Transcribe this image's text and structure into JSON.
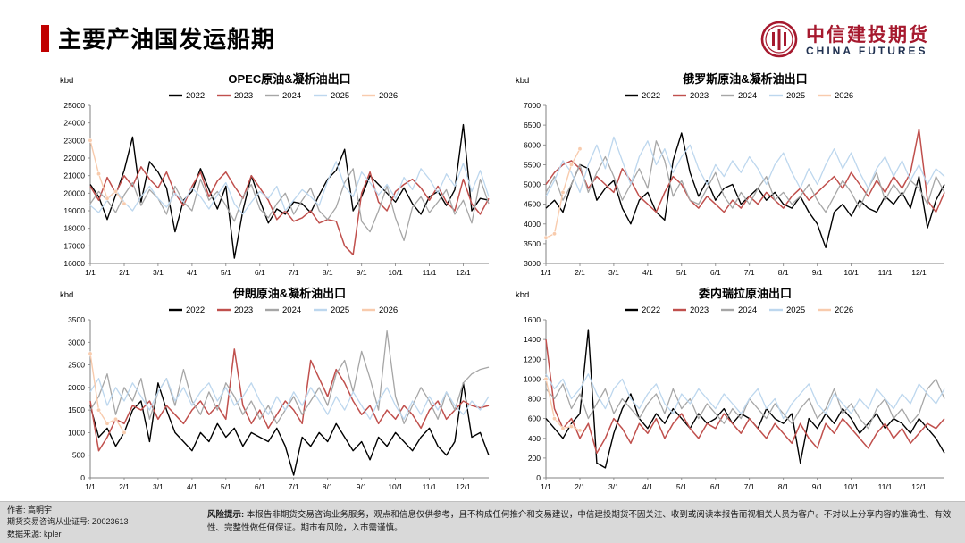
{
  "header": {
    "title": "主要产油国发运船期"
  },
  "logo": {
    "name_cn": "中信建投期货",
    "name_en": "CHINA FUTURES",
    "red": "#A6192E",
    "navy": "#1F3050"
  },
  "footer": {
    "author_line": "作者: 高明宇",
    "license_line": "期货交易咨询从业证号: Z0023613",
    "source_line": "数据来源: kpler",
    "risk_label": "风险提示:",
    "risk_text": "本报告非期货交易咨询业务服务，观点和信息仅供参考，且不构成任何推介和交易建议，中信建投期货不因关注、收到或阅读本报告而视相关人员为客户。不对以上分享内容的准确性、有效性、完整性做任何保证。期市有风险，入市需谨慎。"
  },
  "colors": {
    "accent_red": "#C00000"
  },
  "chart_data": [
    {
      "type": "line",
      "title": "OPEC原油&凝析油出口",
      "ylabel": "kbd",
      "ylim": [
        16000,
        25000
      ],
      "ytick_step": 1000,
      "x_labels": [
        "1/1",
        "2/1",
        "3/1",
        "4/1",
        "5/1",
        "6/1",
        "7/1",
        "8/1",
        "9/1",
        "10/1",
        "11/1",
        "12/1"
      ],
      "points_per_month": 4,
      "series": [
        {
          "name": "2022",
          "color": "#000000",
          "width": 1.4,
          "markers": false,
          "values": [
            20500,
            19800,
            18500,
            19900,
            21300,
            23200,
            19500,
            21800,
            21200,
            20300,
            17800,
            19600,
            20100,
            21400,
            20200,
            19100,
            20400,
            16300,
            19000,
            21000,
            19600,
            18300,
            19100,
            18800,
            19500,
            19400,
            18900,
            19900,
            20800,
            21300,
            22500,
            19000,
            19800,
            21000,
            20500,
            20000,
            19500,
            20300,
            19400,
            18800,
            19800,
            20100,
            19300,
            20200,
            23900,
            19000,
            19700,
            19600
          ]
        },
        {
          "name": "2023",
          "color": "#C0504D",
          "width": 1.5,
          "markers": false,
          "values": [
            20400,
            19600,
            20900,
            20000,
            21000,
            20400,
            21500,
            20800,
            20300,
            21200,
            20000,
            19300,
            20400,
            21200,
            19800,
            20700,
            21200,
            20400,
            19700,
            21000,
            20300,
            19600,
            18500,
            19000,
            18400,
            18600,
            19000,
            18300,
            18500,
            18400,
            17000,
            16500,
            20000,
            21200,
            19500,
            19000,
            20100,
            20500,
            20800,
            20300,
            19600,
            20400,
            19500,
            19000,
            20800,
            19400,
            18800,
            19700
          ]
        },
        {
          "name": "2024",
          "color": "#A6A6A6",
          "width": 1.3,
          "markers": false,
          "values": [
            19400,
            20100,
            19600,
            18900,
            19900,
            20600,
            19300,
            20200,
            19700,
            18800,
            20400,
            19500,
            19000,
            20800,
            19600,
            20100,
            19300,
            18400,
            19800,
            20500,
            19100,
            18600,
            19400,
            20000,
            18800,
            19600,
            20300,
            19000,
            18500,
            19200,
            20600,
            21400,
            18400,
            17800,
            19000,
            20400,
            18600,
            17300,
            19200,
            19800,
            18900,
            19500,
            20200,
            18800,
            19600,
            18300,
            20800,
            19400
          ]
        },
        {
          "name": "2025",
          "color": "#BDD7EE",
          "width": 1.3,
          "markers": false,
          "values": [
            19300,
            18900,
            19600,
            20200,
            19500,
            19000,
            19800,
            20400,
            19700,
            19200,
            20000,
            19500,
            20300,
            19800,
            19100,
            19900,
            20600,
            19400,
            18800,
            19500,
            20100,
            19700,
            20400,
            19000,
            19600,
            20200,
            19800,
            19300,
            20700,
            21800,
            20400,
            19800,
            21200,
            20600,
            19900,
            20500,
            19700,
            20900,
            20200,
            21400,
            20800,
            20000,
            21100,
            20400,
            21700,
            20100,
            21300,
            19800
          ]
        },
        {
          "name": "2026",
          "color": "#F8CBAD",
          "width": 1.4,
          "markers": true,
          "values": [
            23000,
            21100,
            19700,
            20100,
            19400
          ]
        }
      ]
    },
    {
      "type": "line",
      "title": "俄罗斯原油&凝析油出口",
      "ylabel": "kbd",
      "ylim": [
        3000,
        7000
      ],
      "ytick_step": 500,
      "x_labels": [
        "1/1",
        "2/1",
        "3/1",
        "4/1",
        "5/1",
        "6/1",
        "7/1",
        "8/1",
        "9/1",
        "10/1",
        "11/1",
        "12/1"
      ],
      "points_per_month": 4,
      "series": [
        {
          "name": "2022",
          "color": "#000000",
          "width": 1.4,
          "markers": false,
          "values": [
            4400,
            4600,
            4300,
            5000,
            5500,
            5400,
            4600,
            4900,
            5100,
            4400,
            4000,
            4600,
            4800,
            4300,
            4100,
            5600,
            6300,
            5300,
            4700,
            5100,
            4600,
            4900,
            5000,
            4500,
            4700,
            4900,
            4600,
            4800,
            4500,
            4400,
            4700,
            4300,
            4000,
            3400,
            4300,
            4500,
            4200,
            4600,
            4400,
            4300,
            4700,
            4500,
            4800,
            4400,
            5200,
            3900,
            4600,
            5000
          ]
        },
        {
          "name": "2023",
          "color": "#C0504D",
          "width": 1.5,
          "markers": false,
          "values": [
            5000,
            5300,
            5500,
            5600,
            5400,
            4900,
            5200,
            5000,
            4800,
            5400,
            5100,
            4700,
            4500,
            4300,
            4800,
            5200,
            5000,
            4600,
            4400,
            4700,
            4500,
            4300,
            4600,
            4400,
            4700,
            4500,
            4800,
            4600,
            4400,
            4700,
            4900,
            4600,
            4800,
            5000,
            5200,
            4900,
            5300,
            5000,
            4700,
            5100,
            4800,
            5200,
            4900,
            5300,
            6400,
            4600,
            4300,
            4800
          ]
        },
        {
          "name": "2024",
          "color": "#A6A6A6",
          "width": 1.3,
          "markers": false,
          "values": [
            4800,
            5200,
            4600,
            5000,
            5500,
            4800,
            5300,
            5700,
            5200,
            4600,
            5000,
            5400,
            4900,
            6100,
            5600,
            4700,
            5100,
            4600,
            4500,
            4900,
            5300,
            4700,
            4400,
            4800,
            4500,
            4900,
            5200,
            4600,
            4800,
            4500,
            4700,
            5000,
            4600,
            4300,
            4700,
            5100,
            4800,
            4400,
            4900,
            5300,
            4600,
            5000,
            4700,
            5100,
            4900,
            4500,
            5200,
            4800
          ]
        },
        {
          "name": "2025",
          "color": "#BDD7EE",
          "width": 1.3,
          "markers": false,
          "values": [
            4700,
            5100,
            5600,
            5300,
            4800,
            5500,
            6000,
            5400,
            6200,
            5600,
            5000,
            5700,
            6100,
            5500,
            5900,
            5300,
            5700,
            6000,
            5400,
            5000,
            5500,
            5200,
            5600,
            5300,
            5700,
            5400,
            5000,
            5500,
            5800,
            5300,
            4900,
            5400,
            5000,
            5500,
            5900,
            5400,
            5800,
            5300,
            4900,
            5400,
            5700,
            5200,
            5600,
            5100,
            5500,
            5000,
            5400,
            5200
          ]
        },
        {
          "name": "2026",
          "color": "#F8CBAD",
          "width": 1.4,
          "markers": true,
          "values": [
            3650,
            3750,
            4800,
            5500,
            5900
          ]
        }
      ]
    },
    {
      "type": "line",
      "title": "伊朗原油&凝析油出口",
      "ylabel": "kbd",
      "ylim": [
        0,
        3500
      ],
      "ytick_step": 500,
      "x_labels": [
        "1/1",
        "2/1",
        "3/1",
        "4/1",
        "5/1",
        "6/1",
        "7/1",
        "8/1",
        "9/1",
        "10/1",
        "11/1",
        "12/1"
      ],
      "points_per_month": 4,
      "series": [
        {
          "name": "2022",
          "color": "#000000",
          "width": 1.4,
          "markers": false,
          "values": [
            1600,
            900,
            1100,
            700,
            1000,
            1500,
            1700,
            800,
            2100,
            1500,
            1000,
            800,
            600,
            1000,
            800,
            1200,
            900,
            1100,
            700,
            1000,
            900,
            800,
            1100,
            700,
            60,
            900,
            700,
            1000,
            800,
            1200,
            900,
            600,
            800,
            400,
            900,
            700,
            1000,
            800,
            600,
            900,
            1100,
            700,
            500,
            800,
            2100,
            900,
            1000,
            500
          ]
        },
        {
          "name": "2023",
          "color": "#C0504D",
          "width": 1.5,
          "markers": false,
          "values": [
            1700,
            600,
            900,
            1300,
            1200,
            1600,
            1500,
            1700,
            1300,
            1600,
            1400,
            1200,
            1500,
            1700,
            1400,
            1600,
            1300,
            2850,
            1600,
            1200,
            1500,
            1100,
            1400,
            1700,
            1500,
            1200,
            2600,
            2200,
            1800,
            2400,
            2100,
            1700,
            1400,
            1600,
            1200,
            1500,
            1300,
            1600,
            1400,
            1100,
            1500,
            1700,
            1300,
            1500,
            1700,
            1600,
            1550,
            1600
          ]
        },
        {
          "name": "2024",
          "color": "#A6A6A6",
          "width": 1.3,
          "markers": false,
          "values": [
            1500,
            1800,
            2300,
            1400,
            2000,
            1700,
            2200,
            1300,
            1900,
            2200,
            1600,
            2400,
            1700,
            1400,
            1900,
            1500,
            2100,
            1800,
            1400,
            1700,
            1300,
            1600,
            1200,
            1500,
            1800,
            1400,
            1700,
            2000,
            1600,
            2300,
            2600,
            1900,
            2800,
            2200,
            1500,
            3250,
            1800,
            1200,
            1600,
            2000,
            1700,
            1300,
            1900,
            1500,
            2100,
            2300,
            2400,
            2450
          ]
        },
        {
          "name": "2025",
          "color": "#BDD7EE",
          "width": 1.3,
          "markers": false,
          "values": [
            1900,
            2200,
            1600,
            2000,
            1700,
            2100,
            1800,
            1500,
            1900,
            2200,
            1700,
            2000,
            1600,
            1900,
            2100,
            1700,
            2000,
            1600,
            1800,
            2100,
            1700,
            1400,
            1800,
            1500,
            1900,
            1600,
            2000,
            1700,
            1400,
            1800,
            1500,
            1900,
            1600,
            1300,
            1700,
            2000,
            1600,
            1300,
            1700,
            1400,
            1800,
            1500,
            1900,
            1600,
            1400,
            1700,
            1500,
            1800
          ]
        },
        {
          "name": "2026",
          "color": "#F8CBAD",
          "width": 1.4,
          "markers": true,
          "values": [
            2750,
            1500,
            1200,
            1300,
            1000
          ]
        }
      ]
    },
    {
      "type": "line",
      "title": "委内瑞拉原油出口",
      "ylabel": "kbd",
      "ylim": [
        0,
        1600
      ],
      "ytick_step": 200,
      "x_labels": [
        "1/1",
        "2/1",
        "3/1",
        "4/1",
        "5/1",
        "6/1",
        "7/1",
        "8/1",
        "9/1",
        "10/1",
        "11/1",
        "12/1"
      ],
      "points_per_month": 4,
      "series": [
        {
          "name": "2022",
          "color": "#000000",
          "width": 1.4,
          "markers": false,
          "values": [
            600,
            500,
            400,
            550,
            650,
            1500,
            150,
            100,
            450,
            700,
            850,
            600,
            500,
            650,
            550,
            700,
            600,
            500,
            650,
            550,
            600,
            700,
            550,
            650,
            600,
            500,
            700,
            600,
            550,
            650,
            150,
            600,
            500,
            650,
            550,
            700,
            600,
            450,
            550,
            650,
            500,
            600,
            550,
            450,
            600,
            500,
            400,
            250
          ]
        },
        {
          "name": "2023",
          "color": "#C0504D",
          "width": 1.5,
          "markers": false,
          "values": [
            1400,
            700,
            500,
            600,
            400,
            550,
            250,
            400,
            600,
            500,
            350,
            550,
            450,
            600,
            400,
            550,
            650,
            500,
            400,
            550,
            500,
            650,
            550,
            450,
            600,
            500,
            400,
            550,
            450,
            350,
            550,
            400,
            300,
            550,
            450,
            600,
            500,
            400,
            300,
            450,
            550,
            400,
            500,
            350,
            450,
            550,
            500,
            600
          ]
        },
        {
          "name": "2024",
          "color": "#A6A6A6",
          "width": 1.3,
          "markers": false,
          "values": [
            900,
            800,
            950,
            700,
            850,
            600,
            750,
            900,
            650,
            800,
            700,
            600,
            750,
            850,
            650,
            900,
            700,
            800,
            600,
            750,
            650,
            550,
            700,
            600,
            800,
            700,
            600,
            750,
            650,
            550,
            700,
            800,
            600,
            700,
            900,
            650,
            750,
            600,
            500,
            700,
            800,
            600,
            700,
            550,
            650,
            900,
            1000,
            800
          ]
        },
        {
          "name": "2025",
          "color": "#BDD7EE",
          "width": 1.3,
          "markers": false,
          "values": [
            1050,
            900,
            1000,
            800,
            900,
            1050,
            850,
            700,
            900,
            1000,
            800,
            700,
            850,
            950,
            750,
            650,
            850,
            750,
            900,
            800,
            700,
            850,
            750,
            650,
            800,
            900,
            700,
            800,
            600,
            750,
            850,
            950,
            750,
            650,
            850,
            750,
            650,
            800,
            700,
            900,
            800,
            700,
            850,
            750,
            950,
            850,
            750,
            900
          ]
        },
        {
          "name": "2026",
          "color": "#F8CBAD",
          "width": 1.4,
          "markers": true,
          "values": [
            1000,
            600,
            500,
            520,
            480
          ]
        }
      ]
    }
  ]
}
